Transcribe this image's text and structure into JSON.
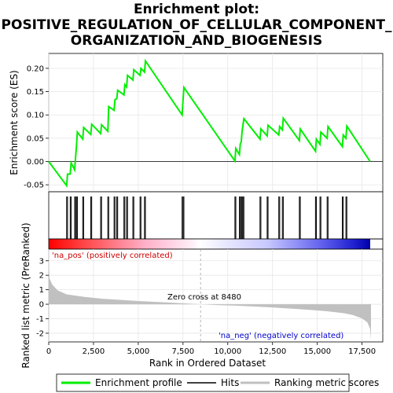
{
  "chart_data": {
    "type": "line",
    "title_lines": [
      "Enrichment plot:",
      "POSITIVE_REGULATION_OF_CELLULAR_COMPONENT_",
      "ORGANIZATION_AND_BIOGENESIS"
    ],
    "es_panel": {
      "ylabel": "Enrichment score (ES)",
      "ylim": [
        -0.065,
        0.232
      ],
      "yticks": [
        -0.05,
        0.0,
        0.05,
        0.1,
        0.15,
        0.2
      ],
      "ytick_labels": [
        "-0.05",
        "0.00",
        "0.05",
        "0.10",
        "0.15",
        "0.20"
      ],
      "series_name": "Enrichment profile",
      "color": "#00ee00",
      "points": [
        [
          0,
          0.0
        ],
        [
          1000,
          -0.052
        ],
        [
          1050,
          -0.027
        ],
        [
          1200,
          -0.027
        ],
        [
          1250,
          -0.003
        ],
        [
          1450,
          -0.018
        ],
        [
          1500,
          0.01
        ],
        [
          1550,
          0.033
        ],
        [
          1600,
          0.063
        ],
        [
          1900,
          0.048
        ],
        [
          1950,
          0.073
        ],
        [
          2350,
          0.058
        ],
        [
          2400,
          0.08
        ],
        [
          2900,
          0.06
        ],
        [
          2950,
          0.079
        ],
        [
          3300,
          0.065
        ],
        [
          3350,
          0.118
        ],
        [
          3650,
          0.11
        ],
        [
          3700,
          0.133
        ],
        [
          3800,
          0.135
        ],
        [
          3850,
          0.153
        ],
        [
          4200,
          0.143
        ],
        [
          4250,
          0.165
        ],
        [
          4350,
          0.16
        ],
        [
          4400,
          0.185
        ],
        [
          4700,
          0.175
        ],
        [
          4750,
          0.197
        ],
        [
          5100,
          0.185
        ],
        [
          5150,
          0.2
        ],
        [
          5350,
          0.192
        ],
        [
          5400,
          0.216
        ],
        [
          7450,
          0.1
        ],
        [
          7500,
          0.13
        ],
        [
          7550,
          0.159
        ],
        [
          10400,
          0.001
        ],
        [
          10450,
          0.028
        ],
        [
          10650,
          0.015
        ],
        [
          10700,
          0.038
        ],
        [
          10750,
          0.042
        ],
        [
          10800,
          0.065
        ],
        [
          10850,
          0.078
        ],
        [
          10900,
          0.092
        ],
        [
          11800,
          0.048
        ],
        [
          11850,
          0.07
        ],
        [
          12200,
          0.055
        ],
        [
          12250,
          0.078
        ],
        [
          12850,
          0.057
        ],
        [
          12900,
          0.075
        ],
        [
          13050,
          0.068
        ],
        [
          13100,
          0.093
        ],
        [
          14000,
          0.045
        ],
        [
          14050,
          0.07
        ],
        [
          14900,
          0.022
        ],
        [
          14950,
          0.048
        ],
        [
          15150,
          0.037
        ],
        [
          15200,
          0.063
        ],
        [
          15550,
          0.05
        ],
        [
          15600,
          0.075
        ],
        [
          16400,
          0.032
        ],
        [
          16450,
          0.057
        ],
        [
          16600,
          0.05
        ],
        [
          16650,
          0.076
        ],
        [
          17950,
          0.0
        ]
      ]
    },
    "hits": [
      1000,
      1050,
      1200,
      1250,
      1450,
      1500,
      1550,
      1600,
      1900,
      1950,
      2350,
      2400,
      2900,
      2950,
      3300,
      3350,
      3650,
      3700,
      3800,
      3850,
      4200,
      4250,
      4350,
      4400,
      4700,
      4750,
      5100,
      5150,
      5350,
      5400,
      7450,
      7500,
      7550,
      10400,
      10450,
      10650,
      10700,
      10750,
      10800,
      10850,
      10900,
      11800,
      11850,
      12200,
      12250,
      12850,
      12900,
      13050,
      13100,
      14000,
      14050,
      14900,
      14950,
      15150,
      15200,
      15550,
      15600,
      16400,
      16450,
      16600,
      16650
    ],
    "rank_panel": {
      "ylabel": "Ranked list metric (PreRanked)",
      "ylim": [
        -2.6,
        3.8
      ],
      "yticks": [
        -2,
        -1,
        0,
        1,
        2,
        3
      ],
      "ytick_labels": [
        "-2",
        "-1",
        "0",
        "1",
        "2",
        "3"
      ],
      "metric_curve": [
        [
          0,
          3.0
        ],
        [
          50,
          1.75
        ],
        [
          200,
          1.35
        ],
        [
          500,
          0.95
        ],
        [
          1000,
          0.68
        ],
        [
          2000,
          0.5
        ],
        [
          3000,
          0.38
        ],
        [
          4000,
          0.3
        ],
        [
          5000,
          0.22
        ],
        [
          6000,
          0.16
        ],
        [
          7000,
          0.1
        ],
        [
          8000,
          0.03
        ],
        [
          8480,
          0.0
        ],
        [
          9500,
          -0.06
        ],
        [
          10500,
          -0.1
        ],
        [
          11500,
          -0.16
        ],
        [
          12500,
          -0.22
        ],
        [
          13500,
          -0.3
        ],
        [
          14500,
          -0.38
        ],
        [
          15500,
          -0.48
        ],
        [
          16500,
          -0.62
        ],
        [
          17000,
          -0.75
        ],
        [
          17500,
          -0.98
        ],
        [
          17800,
          -1.25
        ],
        [
          17950,
          -1.7
        ],
        [
          18000,
          -2.45
        ]
      ],
      "zero_cross_label": "Zero cross at 8480",
      "zero_cross": 8480,
      "pos_label": "'na_pos' (positively correlated)",
      "neg_label": "'na_neg' (negatively correlated)"
    },
    "xlabel": "Rank in Ordered Dataset",
    "xlim": [
      0,
      18000
    ],
    "xticks": [
      0,
      2500,
      5000,
      7500,
      10000,
      12500,
      15000,
      17500
    ],
    "xtick_labels": [
      "0",
      "2,500",
      "5,000",
      "7,500",
      "10,000",
      "12,500",
      "15,000",
      "17,500"
    ],
    "legend": [
      {
        "label": "Enrichment profile",
        "color": "#00ee00"
      },
      {
        "label": "Hits",
        "color": "#000000"
      },
      {
        "label": "Ranking metric scores",
        "color": "#c0c0c0"
      }
    ]
  }
}
